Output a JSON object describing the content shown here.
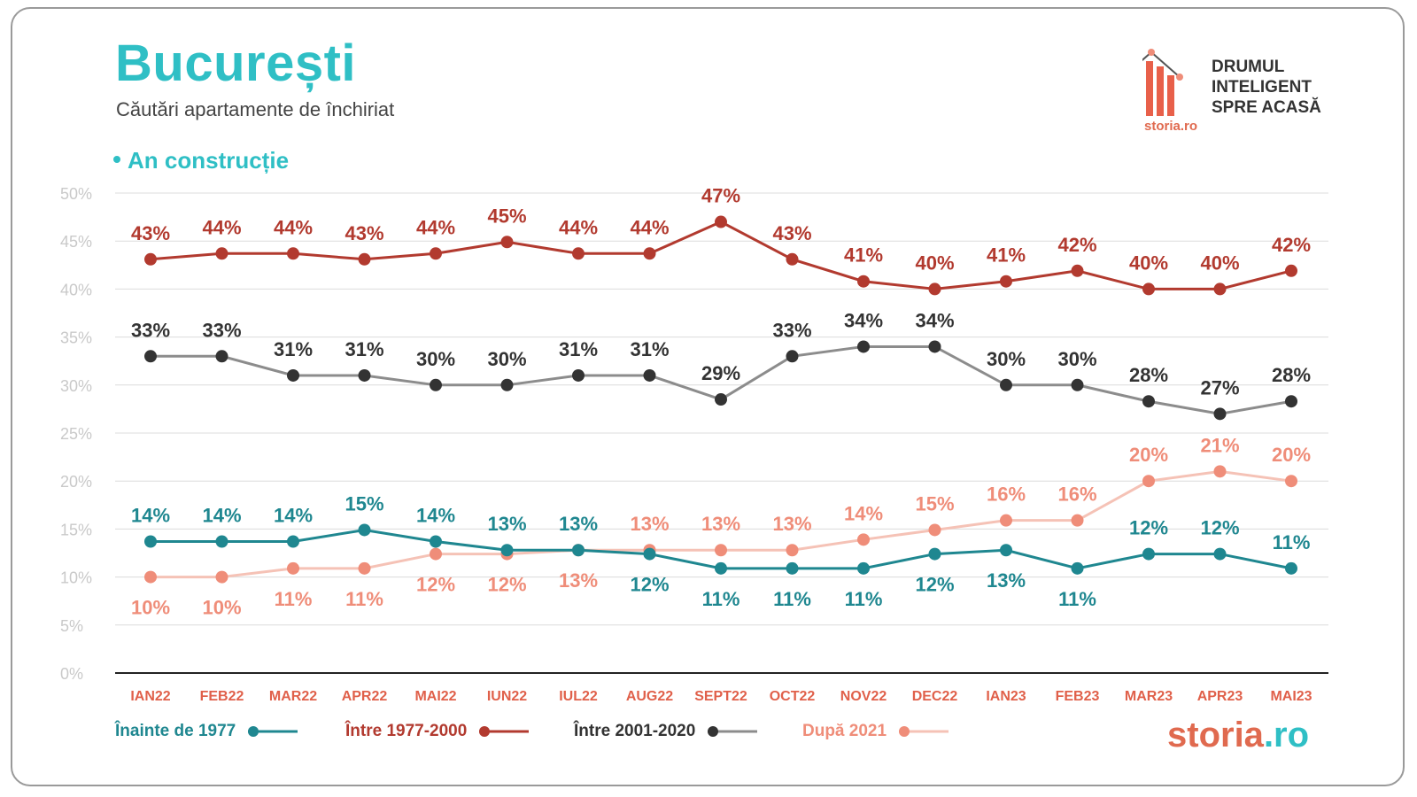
{
  "header": {
    "title": "București",
    "subtitle": "Căutări apartamente de închiriat",
    "section": "An construcție"
  },
  "logo": {
    "line1": "DRUMUL",
    "line2": "INTELIGENT",
    "line3": "SPRE ACASĂ",
    "small_brand": "storia.ro"
  },
  "brand": {
    "part1": "storia",
    "part2": ".ro"
  },
  "colors": {
    "accent": "#2fbfc5",
    "teal": "#1f8790",
    "red": "#b23a2f",
    "dark": "#333333",
    "salmon": "#ef8d79",
    "salmon_line": "#f5c2b6",
    "gray_line": "#8c8c8c"
  },
  "chart_data": {
    "type": "line",
    "title": "București",
    "subtitle": "Căutări apartamente de închiriat",
    "categories": [
      "IAN22",
      "FEB22",
      "MAR22",
      "APR22",
      "MAI22",
      "IUN22",
      "IUL22",
      "AUG22",
      "SEPT22",
      "OCT22",
      "NOV22",
      "DEC22",
      "IAN23",
      "FEB23",
      "MAR23",
      "APR23",
      "MAI23"
    ],
    "ylim": [
      0,
      50
    ],
    "yticks": [
      "0%",
      "5%",
      "10%",
      "15%",
      "20%",
      "25%",
      "30%",
      "35%",
      "40%",
      "45%",
      "50%"
    ],
    "grid": true,
    "legend_position": "bottom-left",
    "series": [
      {
        "name": "Înainte de 1977",
        "color": "#1f8790",
        "line_color": "#1f8790",
        "labels": [
          "14%",
          "14%",
          "14%",
          "15%",
          "14%",
          "13%",
          "13%",
          "12%",
          "11%",
          "11%",
          "11%",
          "12%",
          "13%",
          "11%",
          "12%",
          "12%",
          "11%"
        ],
        "values": [
          13.7,
          13.7,
          13.7,
          14.9,
          13.7,
          12.8,
          12.8,
          12.4,
          10.9,
          10.9,
          10.9,
          12.4,
          12.8,
          10.9,
          12.4,
          12.4,
          10.9
        ],
        "label_pos": [
          "above",
          "above",
          "above",
          "above",
          "above",
          "above",
          "above",
          "below",
          "below",
          "below",
          "below",
          "below",
          "below",
          "below",
          "above",
          "above",
          "above"
        ]
      },
      {
        "name": "Între 1977-2000",
        "color": "#b23a2f",
        "line_color": "#b23a2f",
        "labels": [
          "43%",
          "44%",
          "44%",
          "43%",
          "44%",
          "45%",
          "44%",
          "44%",
          "47%",
          "43%",
          "41%",
          "40%",
          "41%",
          "42%",
          "40%",
          "40%",
          "42%"
        ],
        "values": [
          43.1,
          43.7,
          43.7,
          43.1,
          43.7,
          44.9,
          43.7,
          43.7,
          47.0,
          43.1,
          40.8,
          40.0,
          40.8,
          41.9,
          40.0,
          40.0,
          41.9
        ],
        "label_pos": [
          "above",
          "above",
          "above",
          "above",
          "above",
          "above",
          "above",
          "above",
          "above",
          "above",
          "above",
          "above",
          "above",
          "above",
          "above",
          "above",
          "above"
        ]
      },
      {
        "name": "Între 2001-2020",
        "color": "#333333",
        "line_color": "#8c8c8c",
        "labels": [
          "33%",
          "33%",
          "31%",
          "31%",
          "30%",
          "30%",
          "31%",
          "31%",
          "29%",
          "33%",
          "34%",
          "34%",
          "30%",
          "30%",
          "28%",
          "27%",
          "28%"
        ],
        "values": [
          33.0,
          33.0,
          31.0,
          31.0,
          30.0,
          30.0,
          31.0,
          31.0,
          28.5,
          33.0,
          34.0,
          34.0,
          30.0,
          30.0,
          28.3,
          27.0,
          28.3
        ],
        "label_pos": [
          "above",
          "above",
          "above",
          "above",
          "above",
          "above",
          "above",
          "above",
          "above",
          "above",
          "above",
          "above",
          "above",
          "above",
          "above",
          "above",
          "above"
        ]
      },
      {
        "name": "După 2021",
        "color": "#ef8d79",
        "line_color": "#f5c2b6",
        "labels": [
          "10%",
          "10%",
          "11%",
          "11%",
          "12%",
          "12%",
          "13%",
          "13%",
          "13%",
          "13%",
          "14%",
          "15%",
          "16%",
          "16%",
          "20%",
          "21%",
          "20%"
        ],
        "values": [
          10.0,
          10.0,
          10.9,
          10.9,
          12.4,
          12.4,
          12.8,
          12.8,
          12.8,
          12.8,
          13.9,
          14.9,
          15.9,
          15.9,
          20.0,
          21.0,
          20.0
        ],
        "label_pos": [
          "below",
          "below",
          "below",
          "below",
          "below",
          "below",
          "below",
          "above",
          "above",
          "above",
          "above",
          "above",
          "above",
          "above",
          "above",
          "above",
          "above"
        ]
      }
    ]
  }
}
